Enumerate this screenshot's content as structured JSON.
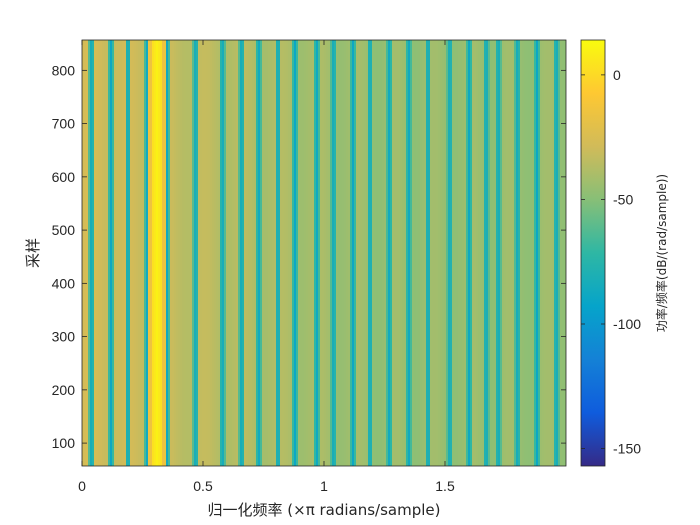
{
  "chart_data": {
    "type": "heatmap",
    "title": "",
    "xlabel": "归一化频率 (×π radians/sample)",
    "ylabel": "采样",
    "xlim": [
      0,
      2
    ],
    "ylim": [
      57,
      857
    ],
    "x_ticks": [
      0,
      0.5,
      1,
      1.5
    ],
    "x_tick_labels": [
      "0",
      "0.5",
      "1",
      "1.5"
    ],
    "y_ticks": [
      100,
      200,
      300,
      400,
      500,
      600,
      700,
      800
    ],
    "y_tick_labels": [
      "100",
      "200",
      "300",
      "400",
      "500",
      "600",
      "700",
      "800"
    ],
    "colorbar": {
      "label": "功率/频率(dB/(rad/sample))",
      "colormap": "parula",
      "clim": [
        -157,
        14
      ],
      "ticks": [
        0,
        -50,
        -100,
        -150
      ],
      "tick_labels": [
        "0",
        "-50",
        "-100",
        "-150"
      ]
    },
    "description_note": "Power varies with frequency only; constant across samples (vertical stripes).",
    "frequency_profile": {
      "strong_peak": {
        "frequency": 0.31,
        "power_db": 10
      },
      "low_level_freqs": [
        0.04,
        0.12,
        0.19,
        0.27,
        0.35,
        0.47,
        0.58,
        0.66,
        0.73,
        0.81,
        0.88,
        0.97,
        1.04,
        1.12,
        1.19,
        1.27,
        1.35,
        1.43,
        1.52,
        1.6,
        1.67,
        1.72,
        1.8,
        1.88,
        1.96
      ],
      "low_level_power_db": -90,
      "background_power_db_low_freq": -28,
      "background_power_db_high_freq": -45
    }
  }
}
